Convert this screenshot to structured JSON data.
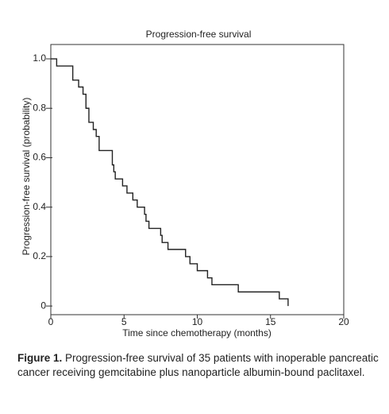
{
  "chart_data": {
    "type": "step",
    "title": "Progression-free survival",
    "x_label": "Time since chemotherapy (months)",
    "y_label": "Progression-free survival (probability)",
    "x": [
      0,
      0.4,
      1.5,
      1.9,
      2.2,
      2.4,
      2.6,
      2.9,
      3.1,
      3.3,
      4.2,
      4.3,
      4.4,
      4.9,
      5.2,
      5.6,
      5.9,
      6.4,
      6.5,
      6.7,
      7.5,
      7.6,
      8.0,
      9.2,
      9.5,
      10.0,
      10.7,
      11.0,
      12.8,
      15.6,
      16.2
    ],
    "values": [
      1,
      0.971,
      0.914,
      0.886,
      0.857,
      0.8,
      0.743,
      0.714,
      0.686,
      0.629,
      0.571,
      0.543,
      0.514,
      0.486,
      0.457,
      0.429,
      0.4,
      0.371,
      0.343,
      0.314,
      0.286,
      0.257,
      0.229,
      0.2,
      0.171,
      0.143,
      0.114,
      0.086,
      0.057,
      0.029,
      0
    ],
    "color": "#222222",
    "xlim": [
      0,
      20
    ],
    "xticks": [
      0,
      5,
      10,
      15,
      20
    ],
    "ylim": [
      -0.035,
      1.058
    ],
    "yticks": [
      0,
      0.2,
      0.4,
      0.6,
      0.8,
      {
        "value": 1,
        "label": "1.0"
      }
    ]
  },
  "caption": {
    "label": "Figure 1.",
    "text": "Progression-free survival of 35 patients with inoperable pancreatic cancer receiving gemcitabine plus nanoparticle albumin-bound paclitaxel."
  }
}
